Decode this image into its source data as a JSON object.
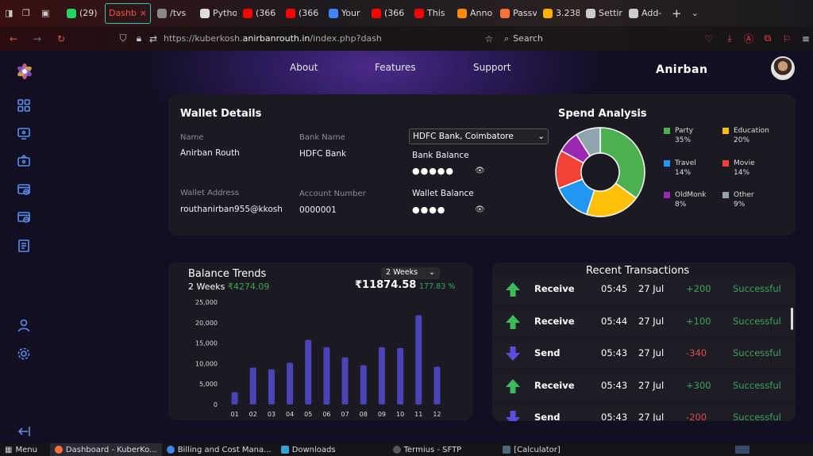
{
  "browser": {
    "tabs": [
      {
        "label": "(29)",
        "color": "#25d366"
      },
      {
        "label": "Dashb",
        "color": "#e04040",
        "active": true
      },
      {
        "label": "/tvs",
        "color": "#888888"
      },
      {
        "label": "Pytho",
        "color": "#dddddd"
      },
      {
        "label": "(366",
        "color": "#ff0000"
      },
      {
        "label": "(366",
        "color": "#ff0000"
      },
      {
        "label": "Your",
        "color": "#4285f4"
      },
      {
        "label": "(366",
        "color": "#ff0000"
      },
      {
        "label": "This",
        "color": "#ff0000"
      },
      {
        "label": "Anno",
        "color": "#ff8c00"
      },
      {
        "label": "Passv",
        "color": "#ff7139"
      },
      {
        "label": "3.238",
        "color": "#ffb000"
      },
      {
        "label": "Settir",
        "color": "#cccccc"
      },
      {
        "label": "Add-",
        "color": "#cccccc"
      }
    ],
    "url_prefix": "https://kuberkosh.",
    "url_domain": "anirbanrouth.in",
    "url_path": "/index.php?dash",
    "search_label": "Search"
  },
  "nav": {
    "about": "About",
    "features": "Features",
    "support": "Support",
    "username": "Anirban"
  },
  "wallet": {
    "title": "Wallet Details",
    "name_label": "Name",
    "name": "Anirban Routh",
    "bank_name_label": "Bank Name",
    "bank_name": "HDFC Bank",
    "bank_select": "HDFC Bank, Coimbatore",
    "bank_balance_label": "Bank Balance",
    "bank_balance_mask": "●●●●●",
    "wallet_address_label": "Wallet Address",
    "wallet_address": "routhanirban955@kkosh",
    "account_number_label": "Account Number",
    "account_number": "0000001",
    "wallet_balance_label": "Wallet Balance",
    "wallet_balance_mask": "●●●●"
  },
  "spend": {
    "title": "Spend Analysis",
    "items": [
      {
        "name": "Party",
        "pct": "35%",
        "value": 35,
        "color": "#4caf50"
      },
      {
        "name": "Education",
        "pct": "20%",
        "value": 20,
        "color": "#ffc107"
      },
      {
        "name": "Travel",
        "pct": "14%",
        "value": 14,
        "color": "#2196f3"
      },
      {
        "name": "Movie",
        "pct": "14%",
        "value": 14,
        "color": "#f44336"
      },
      {
        "name": "OldMonk",
        "pct": "8%",
        "value": 8,
        "color": "#9c27b0"
      },
      {
        "name": "Other",
        "pct": "9%",
        "value": 9,
        "color": "#90a4ae"
      }
    ]
  },
  "trend": {
    "title": "Balance Trends",
    "period_label": "2 Weeks",
    "period_amount": "₹4274.09",
    "select": "2 Weeks",
    "total": "₹11874.58",
    "change": "177.83 %"
  },
  "chart_data": {
    "type": "bar",
    "categories": [
      "01",
      "02",
      "03",
      "04",
      "05",
      "06",
      "07",
      "08",
      "09",
      "10",
      "11",
      "12"
    ],
    "values": [
      3000,
      9000,
      8600,
      10200,
      15800,
      14000,
      11500,
      9600,
      14000,
      13800,
      21800,
      9200
    ],
    "ylim": [
      0,
      25000
    ],
    "yticks": [
      "25,000",
      "20,000",
      "15,000",
      "10,000",
      "5,000",
      "0"
    ],
    "bar_color": "#4b44b8"
  },
  "transactions": {
    "title": "Recent Transactions",
    "rows": [
      {
        "type": "Receive",
        "time": "05:45",
        "date": "27 Jul",
        "amount": "+200",
        "status": "Successful"
      },
      {
        "type": "Receive",
        "time": "05:44",
        "date": "27 Jul",
        "amount": "+100",
        "status": "Successful"
      },
      {
        "type": "Send",
        "time": "05:43",
        "date": "27 Jul",
        "amount": "-340",
        "status": "Successful"
      },
      {
        "type": "Receive",
        "time": "05:43",
        "date": "27 Jul",
        "amount": "+300",
        "status": "Successful"
      },
      {
        "type": "Send",
        "time": "05:43",
        "date": "27 Jul",
        "amount": "-200",
        "status": "Successful"
      }
    ]
  },
  "taskbar": {
    "menu": "Menu",
    "items": [
      "Dashboard - KuberKo...",
      "Billing and Cost Mana...",
      "Downloads",
      "Termius - SFTP",
      "[Calculator]"
    ]
  }
}
